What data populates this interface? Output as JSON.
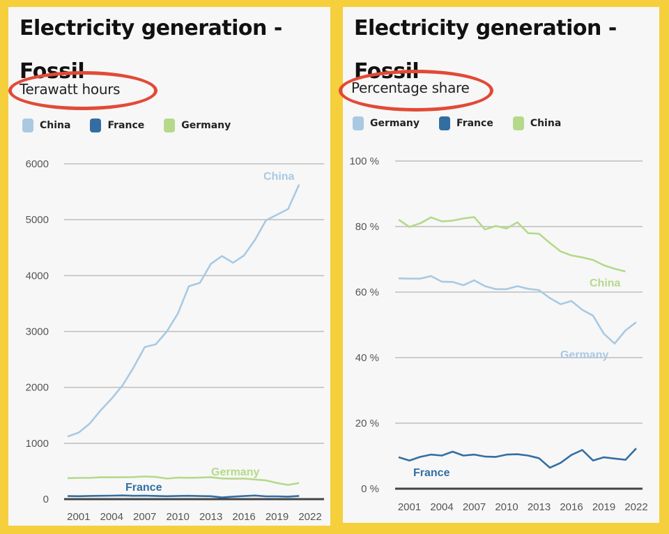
{
  "colors": {
    "background": "#f6cf3c",
    "panel": "#f7f7f7",
    "highlight_oval": "#e24a36",
    "china_left": "#a9c9e2",
    "france": "#336ea3",
    "germany_left": "#b5d98a",
    "germany_right": "#a9c9e2",
    "china_right": "#b5d98a",
    "gridline": "#bdbdbd",
    "baseline": "#444444"
  },
  "chart_data": [
    {
      "type": "line",
      "title": "Electricity generation - Fossil",
      "subtitle": "Terawatt hours",
      "xlabel": "",
      "ylabel": "Terawatt hours",
      "legend": [
        "China",
        "France",
        "Germany"
      ],
      "legend_position": "top-left",
      "grid": true,
      "ylim": [
        0,
        6000
      ],
      "yticks": [
        0,
        1000,
        2000,
        3000,
        4000,
        5000,
        6000
      ],
      "ytick_labels": [
        "0",
        "1000",
        "2000",
        "3000",
        "4000",
        "5000",
        "6000"
      ],
      "xlim": [
        2000,
        2022
      ],
      "xticks": [
        2001,
        2004,
        2007,
        2010,
        2013,
        2016,
        2019,
        2022
      ],
      "xtick_labels": [
        "2001",
        "2004",
        "2007",
        "2010",
        "2013",
        "2016",
        "2019",
        "2022"
      ],
      "x": [
        2000,
        2001,
        2002,
        2003,
        2004,
        2005,
        2006,
        2007,
        2008,
        2009,
        2010,
        2011,
        2012,
        2013,
        2014,
        2015,
        2016,
        2017,
        2018,
        2019,
        2020,
        2021
      ],
      "series": [
        {
          "name": "China",
          "color_key": "china_left",
          "label": "China",
          "values": [
            1120,
            1190,
            1350,
            1590,
            1800,
            2040,
            2360,
            2720,
            2770,
            3000,
            3320,
            3810,
            3870,
            4210,
            4350,
            4230,
            4360,
            4640,
            4990,
            5090,
            5190,
            5630
          ]
        },
        {
          "name": "France",
          "color_key": "france",
          "label": "France",
          "values": [
            55,
            52,
            58,
            60,
            62,
            66,
            60,
            62,
            58,
            52,
            57,
            60,
            55,
            52,
            30,
            45,
            55,
            65,
            50,
            50,
            45,
            58
          ]
        },
        {
          "name": "Germany",
          "color_key": "germany_left",
          "label": "Germany",
          "values": [
            375,
            380,
            380,
            392,
            390,
            392,
            395,
            405,
            398,
            368,
            385,
            382,
            385,
            392,
            370,
            365,
            368,
            352,
            335,
            290,
            255,
            290
          ]
        }
      ]
    },
    {
      "type": "line",
      "title": "Electricity generation - Fossil",
      "subtitle": "Percentage share",
      "xlabel": "",
      "ylabel": "Percentage share",
      "legend": [
        "Germany",
        "France",
        "China"
      ],
      "legend_position": "top-left",
      "grid": true,
      "ylim": [
        0,
        100
      ],
      "yticks": [
        0,
        20,
        40,
        60,
        80,
        100
      ],
      "ytick_labels": [
        "0 %",
        "20 %",
        "40 %",
        "60 %",
        "80 %",
        "100 %"
      ],
      "xlim": [
        2000,
        2022
      ],
      "xticks": [
        2001,
        2004,
        2007,
        2010,
        2013,
        2016,
        2019,
        2022
      ],
      "xtick_labels": [
        "2001",
        "2004",
        "2007",
        "2010",
        "2013",
        "2016",
        "2019",
        "2022"
      ],
      "series": [
        {
          "name": "Germany",
          "color_key": "germany_right",
          "label": "Germany",
          "x": [
            2000,
            2001,
            2002,
            2003,
            2004,
            2005,
            2006,
            2007,
            2008,
            2009,
            2010,
            2011,
            2012,
            2013,
            2014,
            2015,
            2016,
            2017,
            2018,
            2019,
            2020,
            2021,
            2022
          ],
          "values": [
            64.2,
            64.1,
            64.1,
            64.9,
            63.2,
            63.1,
            62.1,
            63.6,
            61.8,
            60.9,
            60.9,
            61.8,
            61.0,
            60.6,
            58.2,
            56.3,
            57.3,
            54.6,
            52.8,
            47.3,
            44.3,
            48.3,
            50.8
          ]
        },
        {
          "name": "France",
          "color_key": "france",
          "label": "France",
          "x": [
            2000,
            2001,
            2002,
            2003,
            2004,
            2005,
            2006,
            2007,
            2008,
            2009,
            2010,
            2011,
            2012,
            2013,
            2014,
            2015,
            2016,
            2017,
            2018,
            2019,
            2020,
            2021,
            2022
          ],
          "values": [
            9.6,
            8.6,
            9.7,
            10.4,
            10.1,
            11.3,
            10.1,
            10.4,
            9.8,
            9.7,
            10.4,
            10.5,
            10.1,
            9.3,
            6.4,
            7.9,
            10.3,
            11.8,
            8.6,
            9.6,
            9.2,
            8.8,
            12.3
          ]
        },
        {
          "name": "China",
          "color_key": "china_right",
          "label": "China",
          "x": [
            2000,
            2001,
            2002,
            2003,
            2004,
            2005,
            2006,
            2007,
            2008,
            2009,
            2010,
            2011,
            2012,
            2013,
            2014,
            2015,
            2016,
            2017,
            2018,
            2019,
            2020,
            2021
          ],
          "values": [
            82.1,
            79.9,
            81.0,
            82.8,
            81.6,
            81.8,
            82.5,
            82.9,
            79.1,
            80.2,
            79.4,
            81.3,
            78.0,
            77.8,
            75.0,
            72.4,
            71.2,
            70.6,
            69.8,
            68.2,
            67.1,
            66.3
          ]
        }
      ]
    }
  ]
}
